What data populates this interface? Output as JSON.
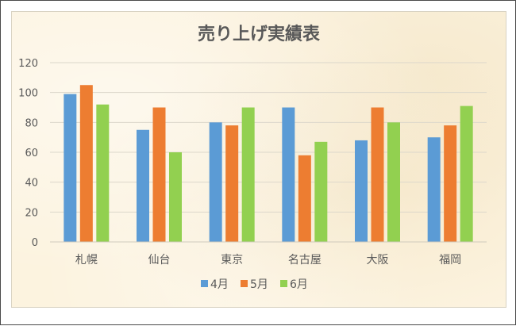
{
  "chart_data": {
    "type": "bar",
    "title": "売り上げ実績表",
    "xlabel": "",
    "ylabel": "",
    "categories": [
      "札幌",
      "仙台",
      "東京",
      "名古屋",
      "大阪",
      "福岡"
    ],
    "series": [
      {
        "name": "4月",
        "color": "#5b9bd5",
        "values": [
          99,
          75,
          80,
          90,
          68,
          70
        ]
      },
      {
        "name": "5月",
        "color": "#ed7d31",
        "values": [
          105,
          90,
          78,
          58,
          90,
          78
        ]
      },
      {
        "name": "6月",
        "color": "#92d050",
        "values": [
          92,
          60,
          90,
          67,
          80,
          91
        ]
      }
    ],
    "ylim": [
      0,
      120
    ],
    "yticks": [
      0,
      20,
      40,
      60,
      80,
      100,
      120
    ],
    "grid": true,
    "legend_position": "bottom"
  }
}
